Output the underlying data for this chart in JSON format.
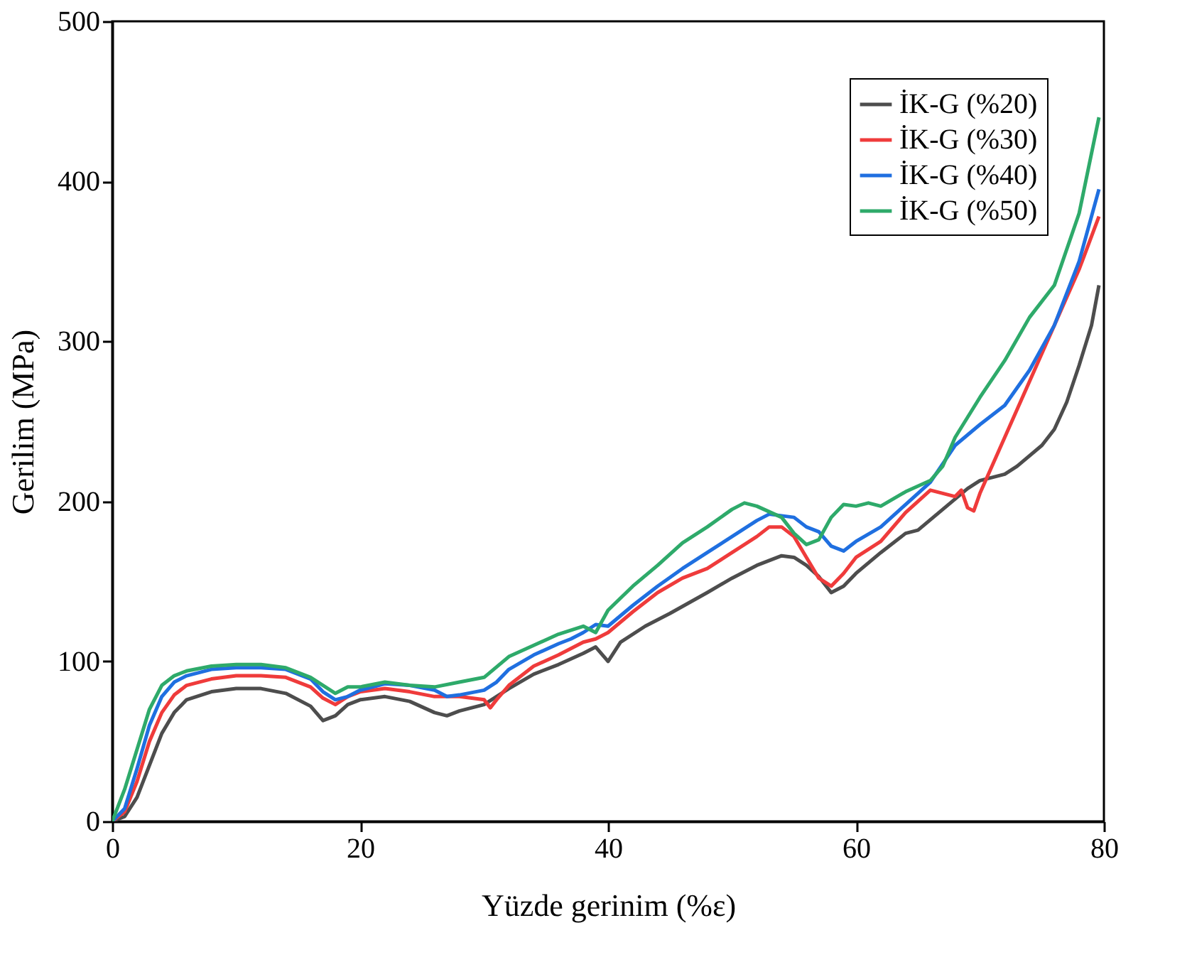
{
  "chart_data": {
    "type": "line",
    "xlabel": "Yüzde gerinim (%ε)",
    "ylabel": "Gerilim (MPa)",
    "xlim": [
      0,
      80
    ],
    "ylim": [
      0,
      500
    ],
    "xticks": [
      0,
      20,
      40,
      60,
      80
    ],
    "yticks": [
      0,
      100,
      200,
      300,
      400,
      500
    ],
    "grid": false,
    "legend": "top right",
    "line_style": "solid",
    "marker": "none",
    "series": [
      {
        "name": "İK-G (%20)",
        "color": "#4d4d4d",
        "x": [
          0,
          1,
          2,
          3,
          4,
          5,
          6,
          8,
          10,
          12,
          14,
          16,
          17,
          18,
          19,
          20,
          22,
          24,
          26,
          27,
          28,
          30,
          32,
          34,
          36,
          38,
          39,
          40,
          41,
          43,
          45,
          48,
          50,
          52,
          54,
          55,
          56,
          57,
          58,
          59,
          60,
          62,
          64,
          65,
          67,
          69,
          70,
          72,
          73,
          75,
          76,
          77,
          78,
          79,
          79.6
        ],
        "values": [
          0,
          3,
          15,
          35,
          55,
          68,
          76,
          81,
          83,
          83,
          80,
          72,
          63,
          66,
          73,
          76,
          78,
          75,
          68,
          66,
          69,
          73,
          83,
          92,
          98,
          105,
          109,
          100,
          112,
          122,
          130,
          143,
          152,
          160,
          166,
          165,
          160,
          153,
          143,
          147,
          155,
          168,
          180,
          182,
          195,
          208,
          213,
          217,
          222,
          235,
          245,
          262,
          285,
          310,
          335
        ]
      },
      {
        "name": "İK-G (%30)",
        "color": "#ef3b3b",
        "x": [
          0,
          1,
          2,
          3,
          4,
          5,
          6,
          8,
          10,
          12,
          14,
          16,
          17,
          18,
          19,
          20,
          22,
          24,
          26,
          28,
          30,
          30.5,
          31,
          32,
          34,
          36,
          38,
          39,
          40,
          42,
          44,
          46,
          48,
          50,
          52,
          53,
          54,
          55,
          56,
          57,
          58,
          59,
          60,
          62,
          64,
          65,
          66,
          67,
          68,
          68.5,
          69,
          69.5,
          70,
          72,
          74,
          76,
          78,
          79.6
        ],
        "values": [
          0,
          6,
          25,
          50,
          68,
          79,
          85,
          89,
          91,
          91,
          90,
          84,
          77,
          73,
          78,
          81,
          83,
          81,
          78,
          78,
          76,
          71,
          76,
          85,
          97,
          104,
          112,
          114,
          118,
          131,
          143,
          152,
          158,
          168,
          178,
          184,
          184,
          178,
          165,
          152,
          147,
          155,
          165,
          175,
          193,
          200,
          207,
          205,
          203,
          207,
          196,
          194,
          205,
          240,
          275,
          310,
          345,
          378
        ]
      },
      {
        "name": "İK-G (%40)",
        "color": "#1f6fe0",
        "x": [
          0,
          1,
          2,
          3,
          4,
          5,
          6,
          8,
          10,
          12,
          14,
          16,
          17,
          18,
          19,
          20,
          22,
          24,
          26,
          27,
          28,
          30,
          31,
          32,
          34,
          36,
          37,
          38,
          39,
          40,
          42,
          44,
          46,
          48,
          50,
          52,
          53,
          55,
          56,
          57,
          58,
          59,
          60,
          62,
          64,
          66,
          68,
          70,
          72,
          74,
          76,
          78,
          79.6
        ],
        "values": [
          0,
          8,
          33,
          60,
          78,
          87,
          91,
          95,
          96,
          96,
          95,
          89,
          81,
          76,
          78,
          82,
          86,
          85,
          82,
          78,
          79,
          82,
          87,
          95,
          104,
          111,
          114,
          118,
          123,
          122,
          135,
          147,
          158,
          168,
          178,
          188,
          192,
          190,
          184,
          181,
          172,
          169,
          175,
          184,
          198,
          212,
          235,
          248,
          260,
          282,
          310,
          350,
          395
        ]
      },
      {
        "name": "İK-G (%50)",
        "color": "#2eaa6a",
        "x": [
          0,
          1,
          2,
          3,
          4,
          5,
          6,
          8,
          10,
          12,
          14,
          16,
          17,
          18,
          19,
          20,
          22,
          24,
          26,
          28,
          30,
          32,
          34,
          36,
          38,
          39,
          40,
          42,
          44,
          46,
          48,
          50,
          51,
          52,
          54,
          55,
          56,
          57,
          58,
          59,
          60,
          61,
          62,
          64,
          66,
          67,
          68,
          70,
          72,
          74,
          76,
          78,
          79.6
        ],
        "values": [
          0,
          20,
          45,
          70,
          85,
          91,
          94,
          97,
          98,
          98,
          96,
          90,
          85,
          80,
          84,
          84,
          87,
          85,
          84,
          87,
          90,
          103,
          110,
          117,
          122,
          118,
          132,
          147,
          160,
          174,
          184,
          195,
          199,
          197,
          190,
          180,
          173,
          176,
          190,
          198,
          197,
          199,
          197,
          206,
          213,
          222,
          240,
          265,
          288,
          315,
          335,
          380,
          440
        ]
      }
    ]
  }
}
